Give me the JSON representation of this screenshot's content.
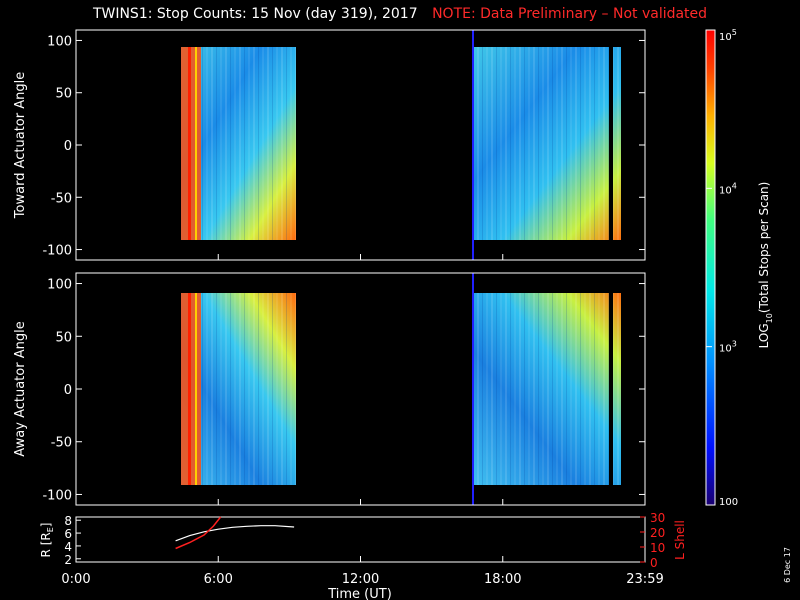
{
  "title": "TWINS1: Stop Counts: 15 Nov (day 319), 2017",
  "note": "NOTE: Data Preliminary – Not validated",
  "date_stamp": "6 Dec 17",
  "colors": {
    "note": "#ff2020",
    "frame": "#ffffff",
    "marker_line": "#2020ff",
    "r_line": "#ffffff",
    "lshell_line": "#ff2020"
  },
  "chart_data": [
    {
      "type": "heatmap",
      "panel": "top",
      "ylabel": "Toward Actuator Angle",
      "ylim": [
        -110,
        110
      ],
      "yticks": [
        100,
        50,
        0,
        -50,
        -100
      ],
      "xlim_hours": [
        0,
        24
      ],
      "data_intervals_hours": [
        [
          4.3,
          9.2
        ],
        [
          16.7,
          24.0
        ]
      ],
      "vertical_marker_hours": 16.7
    },
    {
      "type": "heatmap",
      "panel": "bottom",
      "ylabel": "Away Actuator Angle",
      "ylim": [
        -110,
        110
      ],
      "yticks": [
        100,
        50,
        0,
        -50,
        -100
      ],
      "xlim_hours": [
        0,
        24
      ],
      "data_intervals_hours": [
        [
          4.3,
          9.2
        ],
        [
          16.7,
          24.0
        ]
      ],
      "vertical_marker_hours": 16.7
    },
    {
      "type": "line",
      "panel": "orbit",
      "xlabel": "Time (UT)",
      "x_ticks": [
        "0:00",
        "6:00",
        "12:00",
        "18:00",
        "23:59"
      ],
      "x_tick_hours": [
        0,
        6,
        12,
        18,
        24
      ],
      "left_axis": {
        "label": "R [R",
        "label_sub": "E",
        "label_end": "]",
        "ylim": [
          1.5,
          8.5
        ],
        "ticks": [
          2,
          4,
          6,
          8
        ]
      },
      "right_axis": {
        "label": "L Shell",
        "ylim": [
          0,
          30
        ],
        "ticks": [
          10,
          20,
          30
        ],
        "minor_ticks": [
          0
        ]
      },
      "series": [
        {
          "axis": "left",
          "x": [
            4.2,
            4.8,
            5.4,
            6.0,
            6.6,
            7.2,
            7.8,
            8.4,
            9.2
          ],
          "y": [
            4.8,
            5.6,
            6.2,
            6.6,
            6.9,
            7.05,
            7.15,
            7.15,
            6.95
          ]
        },
        {
          "axis": "right",
          "x": [
            4.2,
            4.8,
            5.4,
            5.8,
            6.1
          ],
          "y": [
            9,
            13,
            18,
            24,
            30
          ]
        }
      ]
    },
    {
      "type": "colorbar",
      "label": "LOG",
      "label_sub": "10",
      "label_end": "(Total Stops per Scan)",
      "scale": "log",
      "range": [
        100,
        100000
      ],
      "tick_labels": [
        "10",
        "10",
        "10",
        "100"
      ],
      "tick_label_exponents": [
        "5",
        "4",
        "3",
        ""
      ],
      "tick_values": [
        100000,
        10000,
        1000,
        100
      ]
    }
  ]
}
